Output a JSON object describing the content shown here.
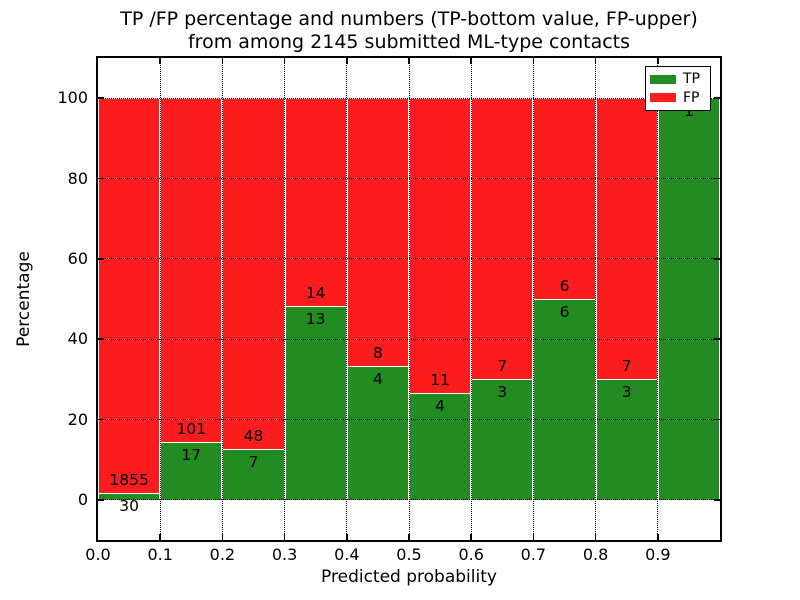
{
  "chart_data": {
    "type": "bar",
    "subtype": "stacked-100-percent",
    "title_line1": "TP /FP percentage and numbers (TP-bottom value, FP-upper)",
    "title_line2": "from among 2145 submitted ML-type contacts",
    "xlabel": "Predicted probability",
    "ylabel": "Percentage",
    "total_contacts": 2145,
    "xlim": [
      0.0,
      1.0
    ],
    "ylim": [
      -10,
      110
    ],
    "bin_width": 0.1,
    "grid": true,
    "legend_position": "upper right",
    "categories": [
      "0.0-0.1",
      "0.1-0.2",
      "0.2-0.3",
      "0.3-0.4",
      "0.4-0.5",
      "0.5-0.6",
      "0.6-0.7",
      "0.7-0.8",
      "0.8-0.9",
      "0.9-1.0"
    ],
    "series": [
      {
        "name": "TP",
        "color": "#228b22",
        "values": [
          30,
          17,
          7,
          13,
          4,
          4,
          3,
          6,
          3,
          1
        ]
      },
      {
        "name": "FP",
        "color": "#fb1d1d",
        "values": [
          1855,
          101,
          48,
          14,
          8,
          11,
          7,
          6,
          7,
          0
        ]
      }
    ],
    "tp_percent": [
      1.59,
      14.41,
      12.73,
      48.15,
      33.33,
      26.67,
      30.0,
      50.0,
      30.0,
      100.0
    ],
    "x_tick_labels": [
      "0.0",
      "0.1",
      "0.2",
      "0.3",
      "0.4",
      "0.5",
      "0.6",
      "0.7",
      "0.8",
      "0.9"
    ],
    "y_ticks": [
      0,
      20,
      40,
      60,
      80,
      100
    ],
    "legend": [
      {
        "label": "TP",
        "color": "#228b22"
      },
      {
        "label": "FP",
        "color": "#fb1d1d"
      }
    ]
  }
}
